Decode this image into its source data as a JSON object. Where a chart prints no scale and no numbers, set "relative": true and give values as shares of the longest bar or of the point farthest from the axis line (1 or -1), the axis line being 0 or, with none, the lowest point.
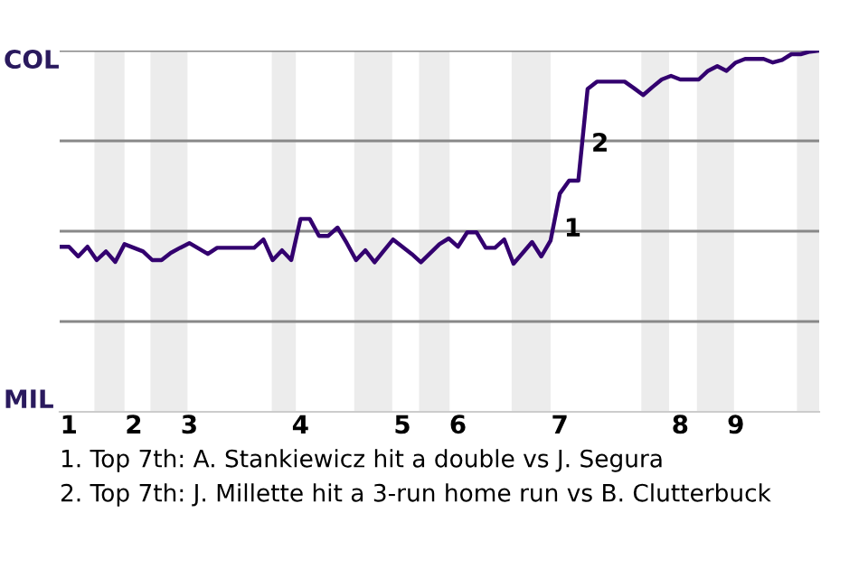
{
  "chart_data": {
    "type": "line",
    "categories": [
      null,
      "1",
      null,
      null,
      null,
      null,
      null,
      null,
      "2",
      null,
      null,
      null,
      null,
      null,
      "3",
      null,
      null,
      null,
      null,
      null,
      null,
      null,
      null,
      null,
      null,
      null,
      "4",
      null,
      null,
      null,
      null,
      null,
      null,
      null,
      null,
      null,
      null,
      "5",
      null,
      null,
      null,
      null,
      null,
      "6",
      null,
      null,
      null,
      null,
      null,
      null,
      null,
      null,
      null,
      null,
      "7",
      null,
      null,
      null,
      null,
      null,
      null,
      null,
      null,
      null,
      null,
      null,
      null,
      "8",
      null,
      null,
      null,
      null,
      null,
      "9",
      null,
      null,
      null,
      null,
      null,
      null,
      null,
      null,
      null
    ],
    "series": [
      {
        "color": "#33006f",
        "values": [
          0.457,
          0.457,
          0.43,
          0.457,
          0.42,
          0.444,
          0.415,
          0.464,
          0.454,
          0.444,
          0.42,
          0.42,
          0.44,
          0.454,
          0.467,
          0.452,
          0.437,
          0.454,
          0.454,
          0.454,
          0.454,
          0.454,
          0.477,
          0.42,
          0.447,
          0.42,
          0.534,
          0.534,
          0.487,
          0.487,
          0.51,
          0.467,
          0.42,
          0.447,
          0.414,
          0.446,
          0.477,
          0.457,
          0.437,
          0.414,
          0.439,
          0.464,
          0.48,
          0.457,
          0.497,
          0.497,
          0.454,
          0.454,
          0.477,
          0.41,
          0.44,
          0.47,
          0.43,
          0.474,
          0.604,
          0.64,
          0.64,
          0.894,
          0.914,
          0.914,
          0.914,
          0.914,
          0.896,
          0.877,
          0.899,
          0.92,
          0.93,
          0.92,
          0.92,
          0.92,
          0.944,
          0.957,
          0.944,
          0.967,
          0.977,
          0.977,
          0.977,
          0.967,
          0.974,
          0.99,
          0.99,
          0.997,
          1.0
        ]
      }
    ],
    "relative": true,
    "grid": "y",
    "annotations": [
      "COL",
      "MIL",
      "1",
      "2",
      "1. Top 7th: A. Stankiewicz hit a double vs J. Segura",
      "2. Top 7th: J. Millette hit a 3-run home run vs B. Clutterbuck"
    ],
    "marker": "none",
    "line_style": "solid"
  }
}
